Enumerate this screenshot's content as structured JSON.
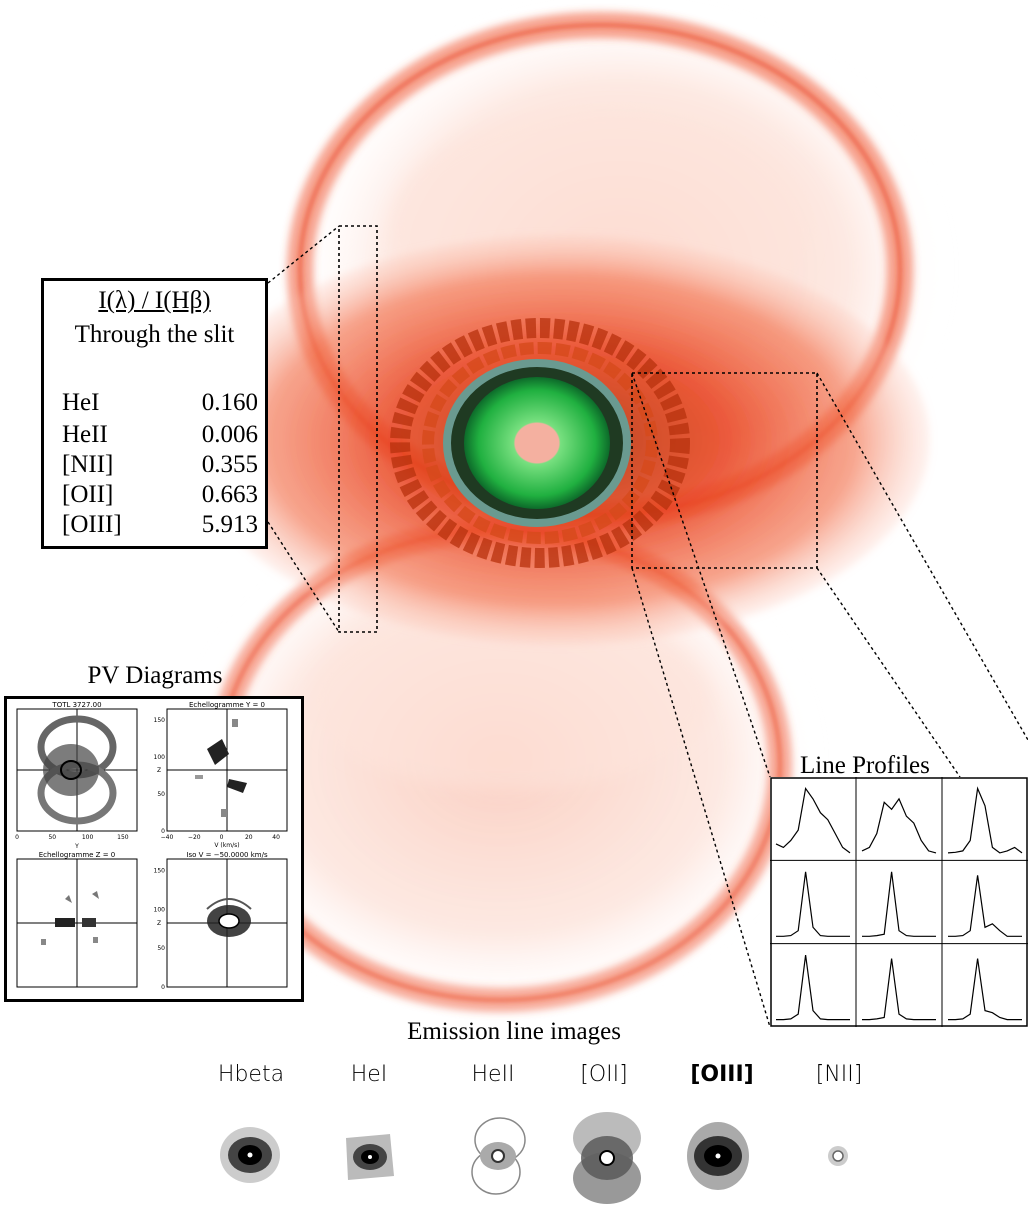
{
  "ratio_box": {
    "title": "I(λ) / I(Hβ)",
    "subtitle": "Through the slit",
    "rows": [
      {
        "name": "HeI",
        "value": "0.160"
      },
      {
        "name": "HeII",
        "value": "0.006"
      },
      {
        "name": "[NII]",
        "value": "0.355"
      },
      {
        "name": "[OII]",
        "value": "0.663"
      },
      {
        "name": "[OIII]",
        "value": "5.913"
      }
    ]
  },
  "pv": {
    "title": "PV Diagrams",
    "panels": [
      {
        "title": "TOTL 3727.00",
        "xlabel": "Y",
        "ylabel": "",
        "xticks": [
          "0",
          "50",
          "100",
          "150"
        ],
        "yticks": []
      },
      {
        "title": "Echellogramme Y = 0",
        "xlabel": "V (km/s)",
        "ylabel": "Z",
        "xticks": [
          "−40",
          "−20",
          "0",
          "20",
          "40"
        ],
        "yticks": [
          "0",
          "50",
          "100",
          "150"
        ]
      },
      {
        "title": "Echellogramme Z = 0",
        "xlabel": "",
        "ylabel": "",
        "xticks": [],
        "yticks": []
      },
      {
        "title": "Iso V = −50.0000 km/s",
        "xlabel": "",
        "ylabel": "Z",
        "xticks": [],
        "yticks": [
          "0",
          "50",
          "100",
          "150"
        ]
      }
    ]
  },
  "line_profiles": {
    "title": "Line Profiles",
    "grid": [
      [
        [
          0.15,
          0.1,
          0.2,
          0.35,
          0.95,
          0.8,
          0.6,
          0.5,
          0.3,
          0.1,
          0.02
        ],
        [
          0.05,
          0.1,
          0.3,
          0.75,
          0.65,
          0.8,
          0.55,
          0.45,
          0.2,
          0.05,
          0.02
        ],
        [
          0.02,
          0.03,
          0.05,
          0.2,
          0.95,
          0.7,
          0.1,
          0.02,
          0.05,
          0.1,
          0.02
        ]
      ],
      [
        [
          0.02,
          0.02,
          0.03,
          0.1,
          0.95,
          0.15,
          0.03,
          0.02,
          0.02,
          0.02,
          0.02
        ],
        [
          0.02,
          0.02,
          0.03,
          0.05,
          0.95,
          0.1,
          0.03,
          0.02,
          0.02,
          0.02,
          0.02
        ],
        [
          0.02,
          0.02,
          0.03,
          0.1,
          0.9,
          0.15,
          0.2,
          0.1,
          0.02,
          0.02,
          0.02
        ]
      ],
      [
        [
          0.02,
          0.02,
          0.03,
          0.1,
          0.95,
          0.15,
          0.03,
          0.02,
          0.02,
          0.02,
          0.02
        ],
        [
          0.02,
          0.02,
          0.03,
          0.05,
          0.9,
          0.1,
          0.03,
          0.02,
          0.02,
          0.02,
          0.02
        ],
        [
          0.02,
          0.02,
          0.03,
          0.1,
          0.9,
          0.15,
          0.12,
          0.05,
          0.02,
          0.02,
          0.02
        ]
      ]
    ]
  },
  "emission": {
    "title": "Emission line images",
    "labels": [
      "Hbeta",
      "HeI",
      "HeII",
      "[OII]",
      "[OIII]",
      "[NII]"
    ]
  },
  "colors": {
    "nebula_red": "#e8401c",
    "core_green": "#20b040",
    "core_center": "#f4b0a0",
    "ring": "#6a9a90"
  }
}
